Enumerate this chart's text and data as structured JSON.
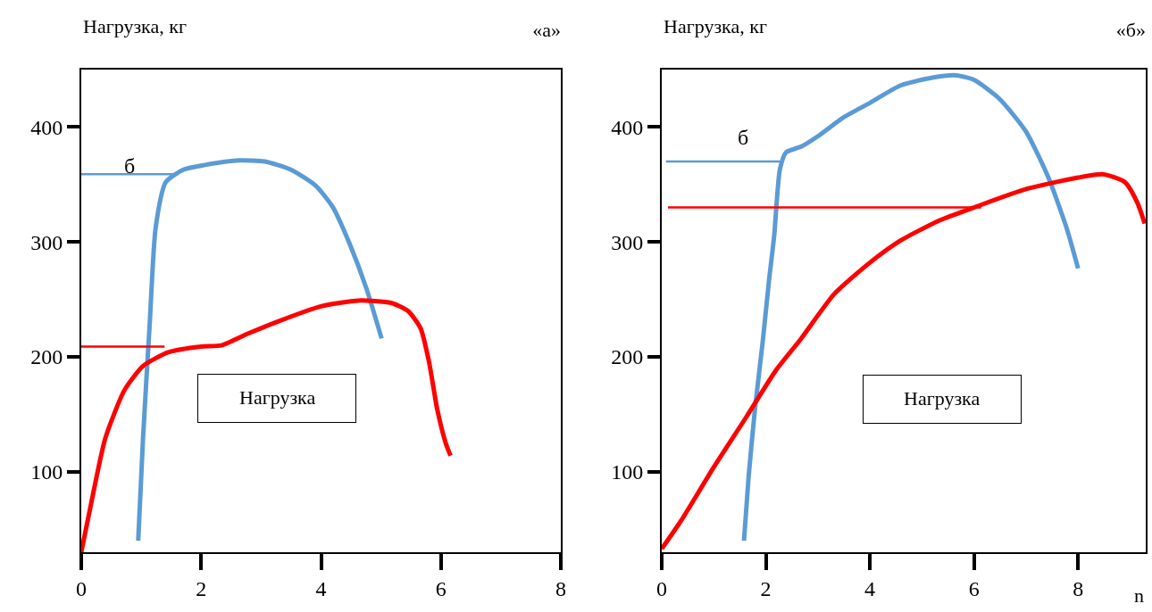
{
  "chart_data": [
    {
      "type": "line",
      "title": "«а»",
      "ylabel": "Нагрузка, кг",
      "xlim": [
        0,
        8
      ],
      "ylim": [
        30,
        450
      ],
      "xticks": [
        0,
        2,
        4,
        6,
        8
      ],
      "yticks": [
        100,
        200,
        300,
        400
      ],
      "grid": false,
      "marker": "none",
      "line_style": "solid",
      "annotations": [
        "б",
        "Нагрузка"
      ],
      "series": [
        {
          "color": "#5b9bd5",
          "x": [
            0.95,
            1.03,
            1.14,
            1.24,
            1.41,
            1.71,
            2.06,
            2.63,
            3.06,
            3.49,
            3.91,
            4.2,
            4.48,
            4.76,
            5.01
          ],
          "values": [
            40,
            129,
            227,
            312,
            352,
            363,
            367,
            371,
            370,
            363,
            349,
            330,
            298,
            259,
            216
          ]
        },
        {
          "color": "#ff0000",
          "x": [
            0,
            0.19,
            0.4,
            0.72,
            1.03,
            1.45,
            2,
            2.34,
            2.77,
            3.34,
            4,
            4.62,
            5.17,
            5.45,
            5.66,
            5.8,
            5.94,
            6.08,
            6.16
          ],
          "values": [
            30,
            79,
            129,
            171,
            192,
            204,
            209,
            210,
            220,
            232,
            244,
            249,
            247,
            240,
            225,
            196,
            154,
            125,
            114
          ]
        },
        {
          "color": "#5b9bd5",
          "x": [
            0,
            1.62
          ],
          "values": [
            359,
            359
          ]
        },
        {
          "color": "#ff0000",
          "x": [
            0,
            1.39
          ],
          "values": [
            209,
            209
          ]
        }
      ]
    },
    {
      "type": "line",
      "title": "«б»",
      "ylabel": "Нагрузка, кг",
      "xlabel": "n",
      "xlim": [
        0,
        9.3
      ],
      "ylim": [
        30,
        450
      ],
      "xticks": [
        0,
        2,
        4,
        6,
        8
      ],
      "yticks": [
        100,
        200,
        300,
        400
      ],
      "grid": false,
      "marker": "none",
      "line_style": "solid",
      "annotations": [
        "б",
        "Нагрузка"
      ],
      "series": [
        {
          "color": "#5b9bd5",
          "x": [
            1.58,
            1.67,
            1.79,
            1.94,
            2.06,
            2.16,
            2.27,
            2.39,
            2.68,
            3,
            3.48,
            4,
            4.58,
            5.2,
            5.66,
            6,
            6.48,
            7,
            7.43,
            7.78,
            8
          ],
          "values": [
            40,
            96,
            154,
            213,
            266,
            305,
            363,
            378,
            383,
            392,
            408,
            421,
            436,
            443,
            445,
            441,
            425,
            396,
            356,
            312,
            277
          ]
        },
        {
          "color": "#ff0000",
          "x": [
            0,
            0.38,
            1,
            1.63,
            2.19,
            2.68,
            3.32,
            4,
            4.58,
            5.35,
            6,
            7,
            8,
            8.47,
            8.9,
            9.14,
            9.28
          ],
          "values": [
            33,
            58,
            104,
            148,
            188,
            216,
            255,
            282,
            301,
            319,
            330,
            346,
            356,
            359,
            352,
            334,
            316
          ]
        },
        {
          "color": "#5b9bd5",
          "x": [
            0.08,
            2.27
          ],
          "values": [
            370,
            370
          ]
        },
        {
          "color": "#ff0000",
          "x": [
            0.12,
            6.14
          ],
          "values": [
            330,
            330
          ]
        }
      ]
    }
  ]
}
